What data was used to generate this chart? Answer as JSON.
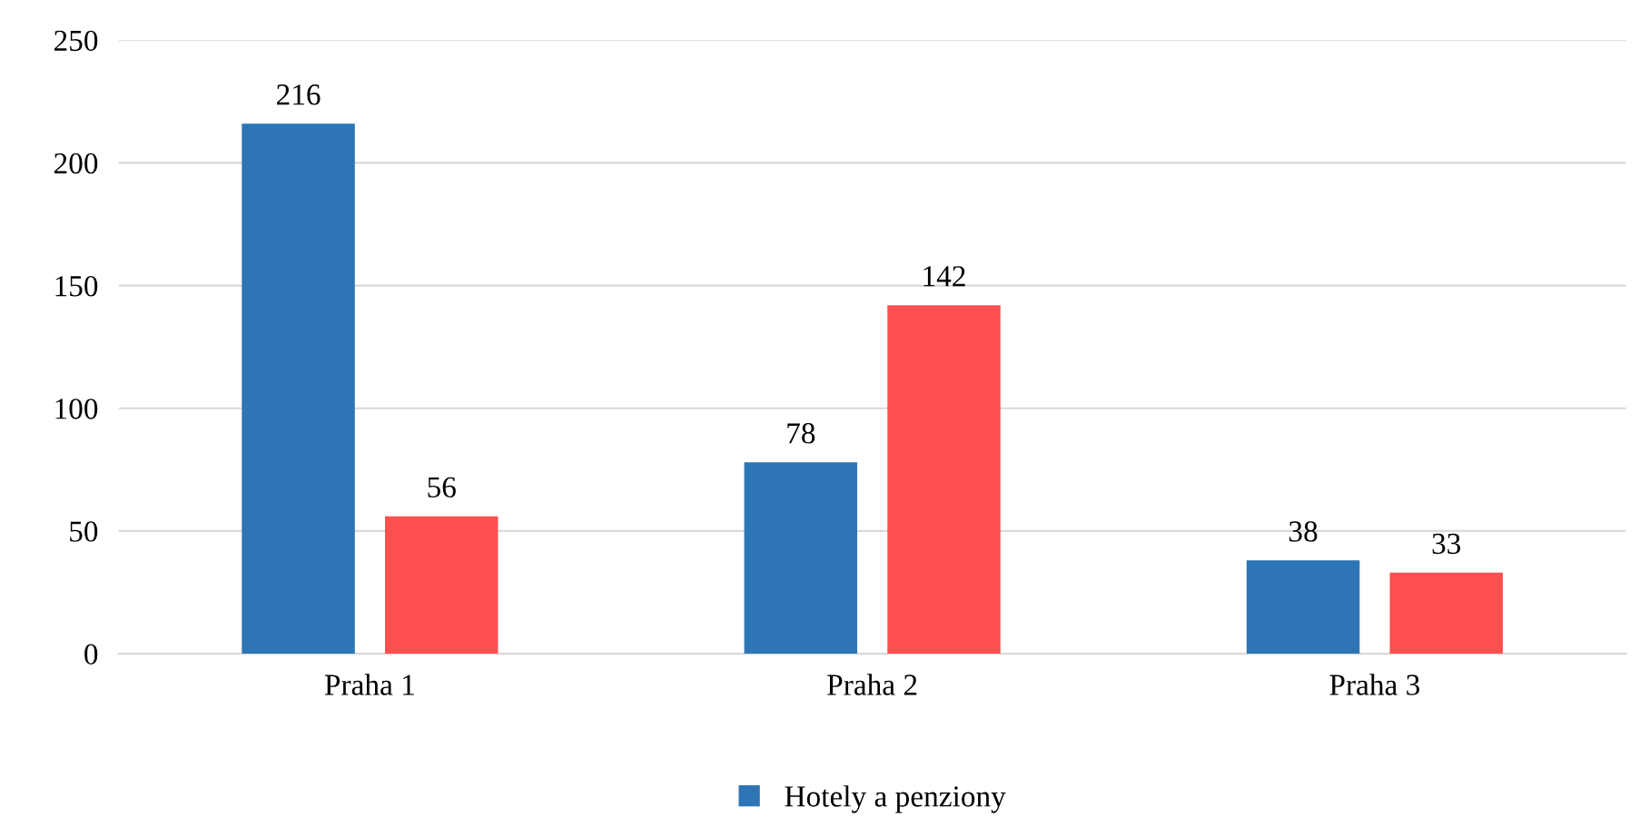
{
  "chart_data": {
    "type": "bar",
    "categories": [
      "Praha 1",
      "Praha 2",
      "Praha 3"
    ],
    "series": [
      {
        "name": "Hotely a penziony",
        "color": "#2e75b6",
        "values": [
          216,
          78,
          38
        ]
      },
      {
        "color": "#ff5050",
        "values": [
          56,
          142,
          33
        ]
      }
    ],
    "ylim": [
      0,
      250
    ],
    "yticks": [
      0,
      50,
      100,
      150,
      200,
      250
    ],
    "grid": "y",
    "legend": "bottom",
    "data_labels": true
  }
}
